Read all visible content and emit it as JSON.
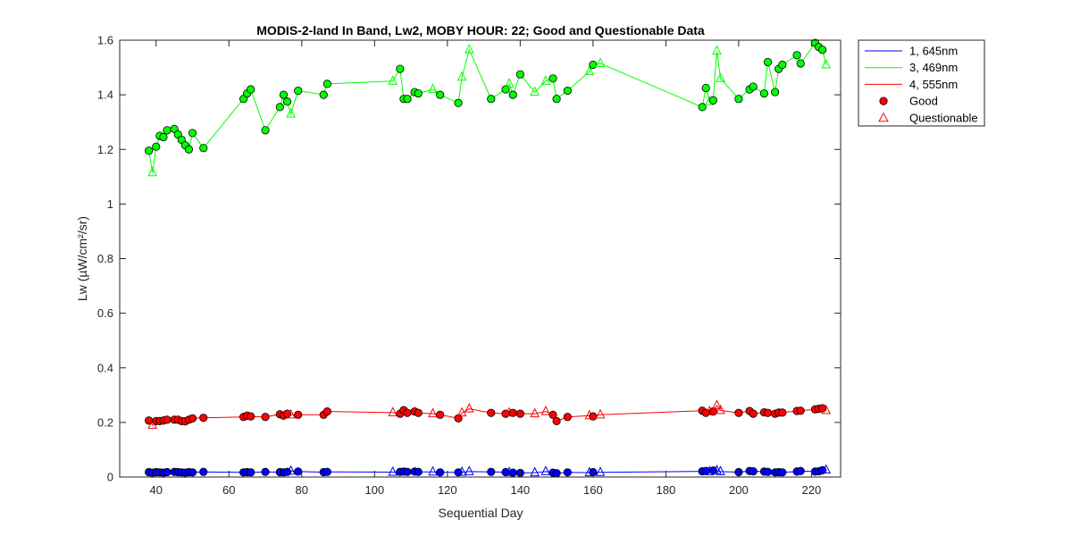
{
  "chart_data": {
    "type": "line",
    "title": "MODIS-2-land In Band,  Lw2, MOBY HOUR: 22;  Good and Questionable Data",
    "xlabel": "Sequential Day",
    "ylabel": "Lw (µW/cm²/sr)",
    "xlim": [
      30,
      228
    ],
    "ylim": [
      0,
      1.6
    ],
    "xticks": [
      40,
      60,
      80,
      100,
      120,
      140,
      160,
      180,
      200,
      220
    ],
    "yticks": [
      0,
      0.2,
      0.4,
      0.6,
      0.8,
      1,
      1.2,
      1.4,
      1.6
    ],
    "ytick_labels": [
      "0",
      "0.2",
      "0.4",
      "0.6",
      "0.8",
      "1",
      "1.2",
      "1.4",
      "1.6"
    ],
    "grid": false,
    "legend_position": "outside-top-right",
    "legend": [
      {
        "label": "1, 645nm",
        "kind": "line",
        "color": "#0000ff"
      },
      {
        "label": "3, 469nm",
        "kind": "line",
        "color": "#00ff00"
      },
      {
        "label": "4, 555nm",
        "kind": "line",
        "color": "#ff0000"
      },
      {
        "label": "Good",
        "kind": "circle",
        "color": "#ff0000"
      },
      {
        "label": "Questionable",
        "kind": "triangle",
        "color": "#ff0000"
      }
    ],
    "series": [
      {
        "name": "1, 645nm",
        "color": "#0000ff",
        "points": [
          [
            38,
            0.018,
            "g"
          ],
          [
            39,
            0.016,
            "g"
          ],
          [
            40,
            0.018,
            "g"
          ],
          [
            41,
            0.017,
            "g"
          ],
          [
            42,
            0.016,
            "g"
          ],
          [
            43,
            0.018,
            "g"
          ],
          [
            45,
            0.019,
            "g"
          ],
          [
            46,
            0.018,
            "g"
          ],
          [
            47,
            0.017,
            "g"
          ],
          [
            48,
            0.016,
            "g"
          ],
          [
            49,
            0.018,
            "g"
          ],
          [
            50,
            0.017,
            "g"
          ],
          [
            53,
            0.019,
            "g"
          ],
          [
            64,
            0.017,
            "g"
          ],
          [
            65,
            0.018,
            "g"
          ],
          [
            66,
            0.017,
            "g"
          ],
          [
            70,
            0.019,
            "g"
          ],
          [
            74,
            0.018,
            "g"
          ],
          [
            75,
            0.017,
            "g"
          ],
          [
            76,
            0.019,
            "g"
          ],
          [
            77,
            0.022,
            "q"
          ],
          [
            79,
            0.02,
            "g"
          ],
          [
            86,
            0.018,
            "g"
          ],
          [
            87,
            0.019,
            "g"
          ],
          [
            105,
            0.018,
            "q"
          ],
          [
            107,
            0.019,
            "g"
          ],
          [
            108,
            0.02,
            "g"
          ],
          [
            109,
            0.019,
            "g"
          ],
          [
            111,
            0.02,
            "g"
          ],
          [
            112,
            0.019,
            "g"
          ],
          [
            116,
            0.019,
            "q"
          ],
          [
            118,
            0.017,
            "g"
          ],
          [
            123,
            0.017,
            "g"
          ],
          [
            124,
            0.018,
            "q"
          ],
          [
            126,
            0.02,
            "q"
          ],
          [
            132,
            0.019,
            "g"
          ],
          [
            136,
            0.018,
            "g"
          ],
          [
            137,
            0.017,
            "q"
          ],
          [
            138,
            0.016,
            "g"
          ],
          [
            140,
            0.015,
            "g"
          ],
          [
            144,
            0.016,
            "q"
          ],
          [
            147,
            0.02,
            "q"
          ],
          [
            149,
            0.016,
            "g"
          ],
          [
            150,
            0.014,
            "g"
          ],
          [
            153,
            0.017,
            "g"
          ],
          [
            159,
            0.016,
            "q"
          ],
          [
            160,
            0.018,
            "g"
          ],
          [
            162,
            0.017,
            "q"
          ],
          [
            190,
            0.021,
            "g"
          ],
          [
            191,
            0.022,
            "g"
          ],
          [
            192,
            0.02,
            "q"
          ],
          [
            193,
            0.024,
            "g"
          ],
          [
            194,
            0.024,
            "q"
          ],
          [
            195,
            0.02,
            "q"
          ],
          [
            200,
            0.018,
            "g"
          ],
          [
            203,
            0.022,
            "g"
          ],
          [
            204,
            0.021,
            "g"
          ],
          [
            207,
            0.02,
            "g"
          ],
          [
            208,
            0.019,
            "g"
          ],
          [
            210,
            0.017,
            "g"
          ],
          [
            211,
            0.018,
            "g"
          ],
          [
            212,
            0.017,
            "g"
          ],
          [
            216,
            0.02,
            "g"
          ],
          [
            217,
            0.022,
            "g"
          ],
          [
            221,
            0.02,
            "g"
          ],
          [
            222,
            0.021,
            "g"
          ],
          [
            223,
            0.025,
            "g"
          ],
          [
            224,
            0.026,
            "q"
          ]
        ]
      },
      {
        "name": "3, 469nm",
        "color": "#00ff00",
        "points": [
          [
            38,
            1.195,
            "g"
          ],
          [
            39,
            1.115,
            "q"
          ],
          [
            40,
            1.21,
            "g"
          ],
          [
            41,
            1.25,
            "g"
          ],
          [
            42,
            1.245,
            "g"
          ],
          [
            43,
            1.27,
            "g"
          ],
          [
            45,
            1.275,
            "g"
          ],
          [
            46,
            1.255,
            "g"
          ],
          [
            47,
            1.235,
            "g"
          ],
          [
            48,
            1.215,
            "g"
          ],
          [
            49,
            1.2,
            "g"
          ],
          [
            50,
            1.26,
            "g"
          ],
          [
            53,
            1.205,
            "g"
          ],
          [
            64,
            1.385,
            "g"
          ],
          [
            65,
            1.405,
            "g"
          ],
          [
            66,
            1.42,
            "g"
          ],
          [
            70,
            1.27,
            "g"
          ],
          [
            74,
            1.355,
            "g"
          ],
          [
            75,
            1.4,
            "g"
          ],
          [
            76,
            1.375,
            "g"
          ],
          [
            77,
            1.33,
            "q"
          ],
          [
            79,
            1.415,
            "g"
          ],
          [
            86,
            1.4,
            "g"
          ],
          [
            87,
            1.44,
            "g"
          ],
          [
            105,
            1.45,
            "q"
          ],
          [
            107,
            1.495,
            "g"
          ],
          [
            108,
            1.385,
            "g"
          ],
          [
            109,
            1.385,
            "g"
          ],
          [
            111,
            1.41,
            "g"
          ],
          [
            112,
            1.405,
            "g"
          ],
          [
            116,
            1.42,
            "q"
          ],
          [
            118,
            1.4,
            "g"
          ],
          [
            123,
            1.37,
            "g"
          ],
          [
            124,
            1.465,
            "q"
          ],
          [
            126,
            1.565,
            "q"
          ],
          [
            132,
            1.385,
            "g"
          ],
          [
            136,
            1.42,
            "g"
          ],
          [
            137,
            1.44,
            "q"
          ],
          [
            138,
            1.4,
            "g"
          ],
          [
            140,
            1.475,
            "g"
          ],
          [
            144,
            1.41,
            "q"
          ],
          [
            147,
            1.45,
            "q"
          ],
          [
            149,
            1.46,
            "g"
          ],
          [
            150,
            1.385,
            "g"
          ],
          [
            153,
            1.415,
            "g"
          ],
          [
            159,
            1.485,
            "q"
          ],
          [
            160,
            1.51,
            "g"
          ],
          [
            162,
            1.515,
            "q"
          ],
          [
            190,
            1.355,
            "g"
          ],
          [
            191,
            1.425,
            "g"
          ],
          [
            192,
            1.375,
            "q"
          ],
          [
            193,
            1.38,
            "g"
          ],
          [
            194,
            1.56,
            "q"
          ],
          [
            195,
            1.46,
            "q"
          ],
          [
            200,
            1.385,
            "g"
          ],
          [
            203,
            1.42,
            "g"
          ],
          [
            204,
            1.43,
            "g"
          ],
          [
            207,
            1.405,
            "g"
          ],
          [
            208,
            1.52,
            "g"
          ],
          [
            210,
            1.41,
            "g"
          ],
          [
            211,
            1.495,
            "g"
          ],
          [
            212,
            1.51,
            "g"
          ],
          [
            216,
            1.545,
            "g"
          ],
          [
            217,
            1.515,
            "g"
          ],
          [
            221,
            1.59,
            "g"
          ],
          [
            222,
            1.575,
            "g"
          ],
          [
            223,
            1.565,
            "g"
          ],
          [
            224,
            1.51,
            "q"
          ]
        ]
      },
      {
        "name": "4, 555nm",
        "color": "#ff0000",
        "points": [
          [
            38,
            0.207,
            "g"
          ],
          [
            39,
            0.19,
            "q"
          ],
          [
            40,
            0.205,
            "g"
          ],
          [
            41,
            0.205,
            "g"
          ],
          [
            42,
            0.207,
            "g"
          ],
          [
            43,
            0.21,
            "g"
          ],
          [
            45,
            0.21,
            "g"
          ],
          [
            46,
            0.21,
            "g"
          ],
          [
            47,
            0.205,
            "g"
          ],
          [
            48,
            0.204,
            "g"
          ],
          [
            49,
            0.21,
            "g"
          ],
          [
            50,
            0.215,
            "g"
          ],
          [
            53,
            0.217,
            "g"
          ],
          [
            64,
            0.22,
            "g"
          ],
          [
            65,
            0.225,
            "g"
          ],
          [
            66,
            0.222,
            "g"
          ],
          [
            70,
            0.22,
            "g"
          ],
          [
            74,
            0.23,
            "g"
          ],
          [
            75,
            0.225,
            "g"
          ],
          [
            76,
            0.232,
            "g"
          ],
          [
            77,
            0.228,
            "q"
          ],
          [
            79,
            0.228,
            "g"
          ],
          [
            86,
            0.228,
            "g"
          ],
          [
            87,
            0.24,
            "g"
          ],
          [
            105,
            0.236,
            "q"
          ],
          [
            107,
            0.232,
            "g"
          ],
          [
            108,
            0.245,
            "g"
          ],
          [
            109,
            0.235,
            "g"
          ],
          [
            111,
            0.24,
            "g"
          ],
          [
            112,
            0.235,
            "g"
          ],
          [
            116,
            0.232,
            "q"
          ],
          [
            118,
            0.228,
            "g"
          ],
          [
            123,
            0.215,
            "g"
          ],
          [
            124,
            0.235,
            "q"
          ],
          [
            126,
            0.25,
            "q"
          ],
          [
            132,
            0.235,
            "g"
          ],
          [
            136,
            0.232,
            "g"
          ],
          [
            137,
            0.235,
            "q"
          ],
          [
            138,
            0.235,
            "g"
          ],
          [
            140,
            0.232,
            "g"
          ],
          [
            144,
            0.232,
            "q"
          ],
          [
            147,
            0.24,
            "q"
          ],
          [
            149,
            0.228,
            "g"
          ],
          [
            150,
            0.205,
            "g"
          ],
          [
            153,
            0.22,
            "g"
          ],
          [
            159,
            0.225,
            "q"
          ],
          [
            160,
            0.222,
            "g"
          ],
          [
            162,
            0.228,
            "q"
          ],
          [
            190,
            0.243,
            "g"
          ],
          [
            191,
            0.235,
            "g"
          ],
          [
            192,
            0.24,
            "q"
          ],
          [
            193,
            0.24,
            "g"
          ],
          [
            194,
            0.262,
            "q"
          ],
          [
            195,
            0.244,
            "q"
          ],
          [
            200,
            0.235,
            "g"
          ],
          [
            203,
            0.242,
            "g"
          ],
          [
            204,
            0.232,
            "g"
          ],
          [
            207,
            0.237,
            "g"
          ],
          [
            208,
            0.235,
            "g"
          ],
          [
            210,
            0.232,
            "g"
          ],
          [
            211,
            0.236,
            "g"
          ],
          [
            212,
            0.236,
            "g"
          ],
          [
            216,
            0.242,
            "g"
          ],
          [
            217,
            0.243,
            "g"
          ],
          [
            221,
            0.248,
            "g"
          ],
          [
            222,
            0.25,
            "g"
          ],
          [
            223,
            0.252,
            "g"
          ],
          [
            224,
            0.244,
            "q"
          ]
        ]
      }
    ]
  }
}
